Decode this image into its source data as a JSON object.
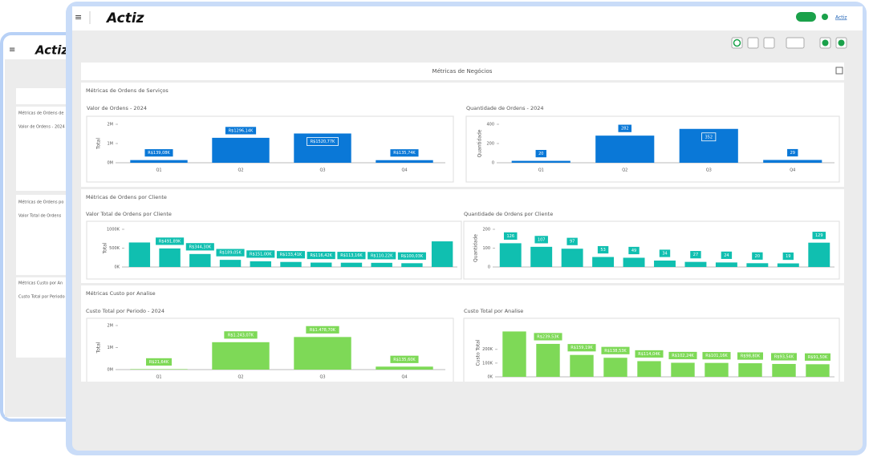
{
  "back_window": {
    "logo": "Actiz",
    "labels": [
      "Métricas de Ordens de",
      "Valor de Ordens - 2024",
      "Métricas de Ordens po",
      "Valor Total de Ordens",
      "Métricas Custo por An",
      "Custo Total por Periodo"
    ]
  },
  "header": {
    "logo": "Actiz",
    "user": "Actiz"
  },
  "page_title": "Métricas de Negócios",
  "sections": [
    {
      "title": "Métricas de Ordens de Serviços",
      "charts": [
        {
          "type": "bar",
          "title": "Valor de Ordens - 2024",
          "ylabel": "Total",
          "color": "#0a78d7",
          "categories": [
            "Q1",
            "Q2",
            "Q3",
            "Q4"
          ],
          "values": [
            139080,
            1296140,
            1520770,
            135740
          ],
          "value_labels": [
            "R$139,08K",
            "R$1296,14K",
            "R$1520,77K",
            "R$135,74K"
          ],
          "ylim": [
            0,
            2000000
          ],
          "yticks": [
            {
              "value": 0,
              "label": "0M"
            },
            {
              "value": 1000000,
              "label": "1M"
            },
            {
              "value": 2000000,
              "label": "2M"
            }
          ]
        },
        {
          "type": "bar",
          "title": "Quantidade de Ordens - 2024",
          "ylabel": "Quantidade",
          "color": "#0a78d7",
          "categories": [
            "Q1",
            "Q2",
            "Q3",
            "Q4"
          ],
          "values": [
            20,
            282,
            352,
            29
          ],
          "ylim": [
            0,
            400
          ],
          "yticks": [
            0,
            200,
            400
          ]
        }
      ]
    },
    {
      "title": "Métricas de Ordens por Cliente",
      "charts": [
        {
          "type": "bar",
          "title": "Valor Total de Ordens por Cliente",
          "ylabel": "Total",
          "color": "#10bfb0",
          "categories": [
            null,
            null,
            null,
            null,
            null,
            null,
            null,
            null,
            null,
            null,
            null
          ],
          "values": [
            650000,
            491890,
            344300,
            189050,
            151000,
            133410,
            116420,
            113160,
            110220,
            100030,
            680000
          ],
          "value_labels": [
            null,
            "R$491,89K",
            "R$344,30K",
            "R$189,05K",
            "R$151,00K",
            "R$133,41K",
            "R$116,42K",
            "R$113,16K",
            "R$110,22K",
            "R$100,03K",
            null
          ],
          "ylim": [
            0,
            1000000
          ],
          "yticks": [
            {
              "value": 0,
              "label": "0K"
            },
            {
              "value": 500000,
              "label": "500K"
            },
            {
              "value": 1000000,
              "label": "1000K"
            }
          ]
        },
        {
          "type": "bar",
          "title": "Quantidade de Ordens por Cliente",
          "ylabel": "Quantidade",
          "color": "#10bfb0",
          "categories": [
            null,
            null,
            null,
            null,
            null,
            null,
            null,
            null,
            null,
            null,
            null
          ],
          "values": [
            126,
            107,
            97,
            53,
            49,
            34,
            27,
            24,
            20,
            19,
            129
          ],
          "ylim": [
            0,
            200
          ],
          "yticks": [
            0,
            100,
            200
          ]
        }
      ]
    },
    {
      "title": "Métricas Custo por Analise",
      "charts": [
        {
          "type": "bar",
          "title": "Custo Total por Periodo - 2024",
          "ylabel": "Total",
          "color": "#7ed957",
          "categories": [
            "Q1",
            "Q2",
            "Q3",
            "Q4"
          ],
          "values": [
            21640,
            1243070,
            1478700,
            135600
          ],
          "value_labels": [
            "R$21,64K",
            "R$1.243,07K",
            "R$1.478,70K",
            "R$135,60K"
          ],
          "ylim": [
            0,
            2000000
          ],
          "yticks": [
            {
              "value": 0,
              "label": "0M"
            },
            {
              "value": 1000000,
              "label": "1M"
            },
            {
              "value": 2000000,
              "label": "2M"
            }
          ]
        },
        {
          "type": "bar",
          "title": "Custo Total por Analise",
          "ylabel": "Custo Total",
          "color": "#7ed957",
          "categories": [
            null,
            null,
            null,
            null,
            null,
            null,
            null,
            null,
            null,
            null
          ],
          "values": [
            330000,
            239530,
            159190,
            138530,
            114040,
            102240,
            101160,
            98800,
            93540,
            91500
          ],
          "value_labels": [
            null,
            "R$239,53K",
            "R$159,19K",
            "R$138,53K",
            "R$114,04K",
            "R$102,24K",
            "R$101,16K",
            "R$98,80K",
            "R$93,54K",
            "R$91,50K"
          ],
          "ylim": [
            0,
            350000
          ],
          "yticks": [
            {
              "value": 0,
              "label": "0K"
            },
            {
              "value": 100000,
              "label": "100K"
            },
            {
              "value": 200000,
              "label": "200K"
            }
          ]
        }
      ]
    }
  ]
}
